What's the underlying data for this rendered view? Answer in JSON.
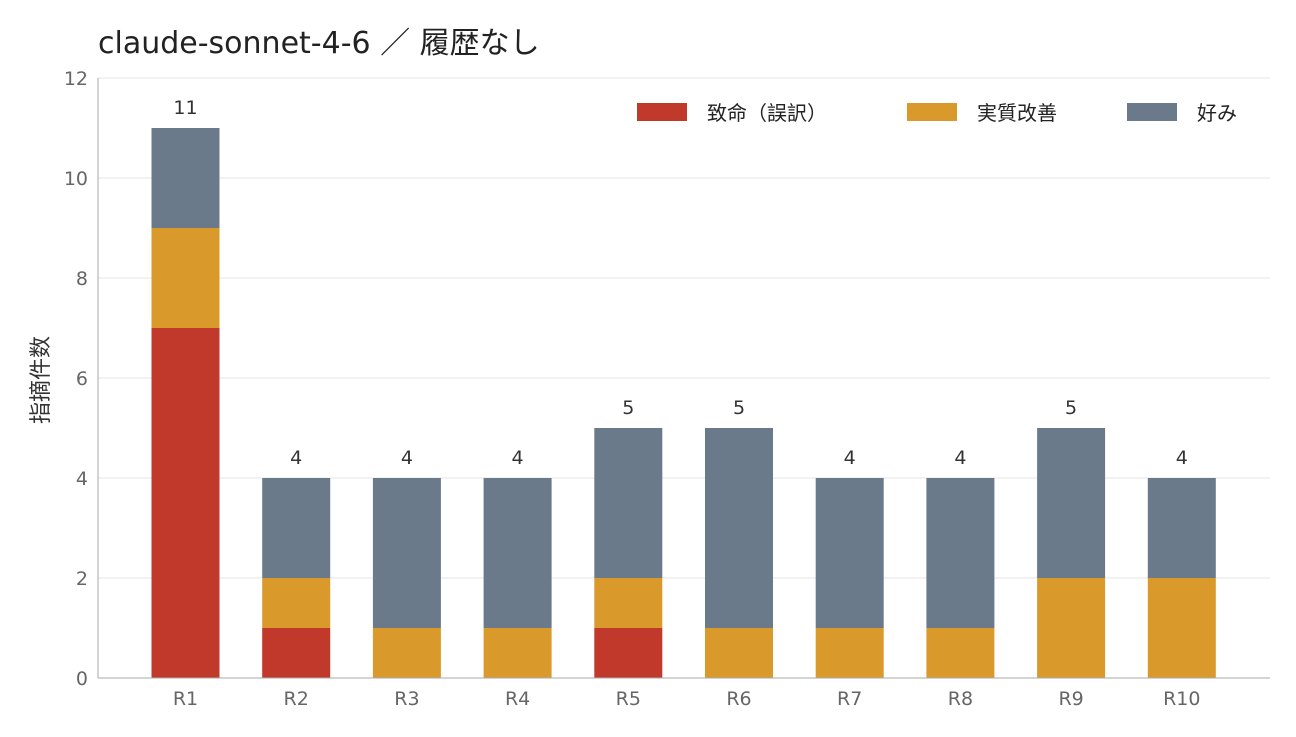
{
  "chart_data": {
    "type": "bar",
    "stacked": true,
    "title": "claude-sonnet-4-6 ／ 履歴なし",
    "ylabel": "指摘件数",
    "xlabel": "",
    "ylim": [
      0,
      12
    ],
    "yticks": [
      "0",
      "2",
      "4",
      "6",
      "8",
      "10",
      "12"
    ],
    "grid": true,
    "legend_position": "top-right",
    "categories": [
      "R1",
      "R2",
      "R3",
      "R4",
      "R5",
      "R6",
      "R7",
      "R8",
      "R9",
      "R10"
    ],
    "series": [
      {
        "name": "致命（誤訳）",
        "color": "#c0392b",
        "values": [
          7,
          1,
          0,
          0,
          1,
          0,
          0,
          0,
          0,
          0
        ]
      },
      {
        "name": "実質改善",
        "color": "#d9992b",
        "values": [
          2,
          1,
          1,
          1,
          1,
          1,
          1,
          1,
          2,
          2
        ]
      },
      {
        "name": "好み",
        "color": "#6b7a8a",
        "values": [
          2,
          2,
          3,
          3,
          3,
          4,
          3,
          3,
          3,
          2
        ]
      }
    ],
    "totals": [
      "11",
      "4",
      "4",
      "4",
      "5",
      "5",
      "4",
      "4",
      "5",
      "4"
    ]
  }
}
